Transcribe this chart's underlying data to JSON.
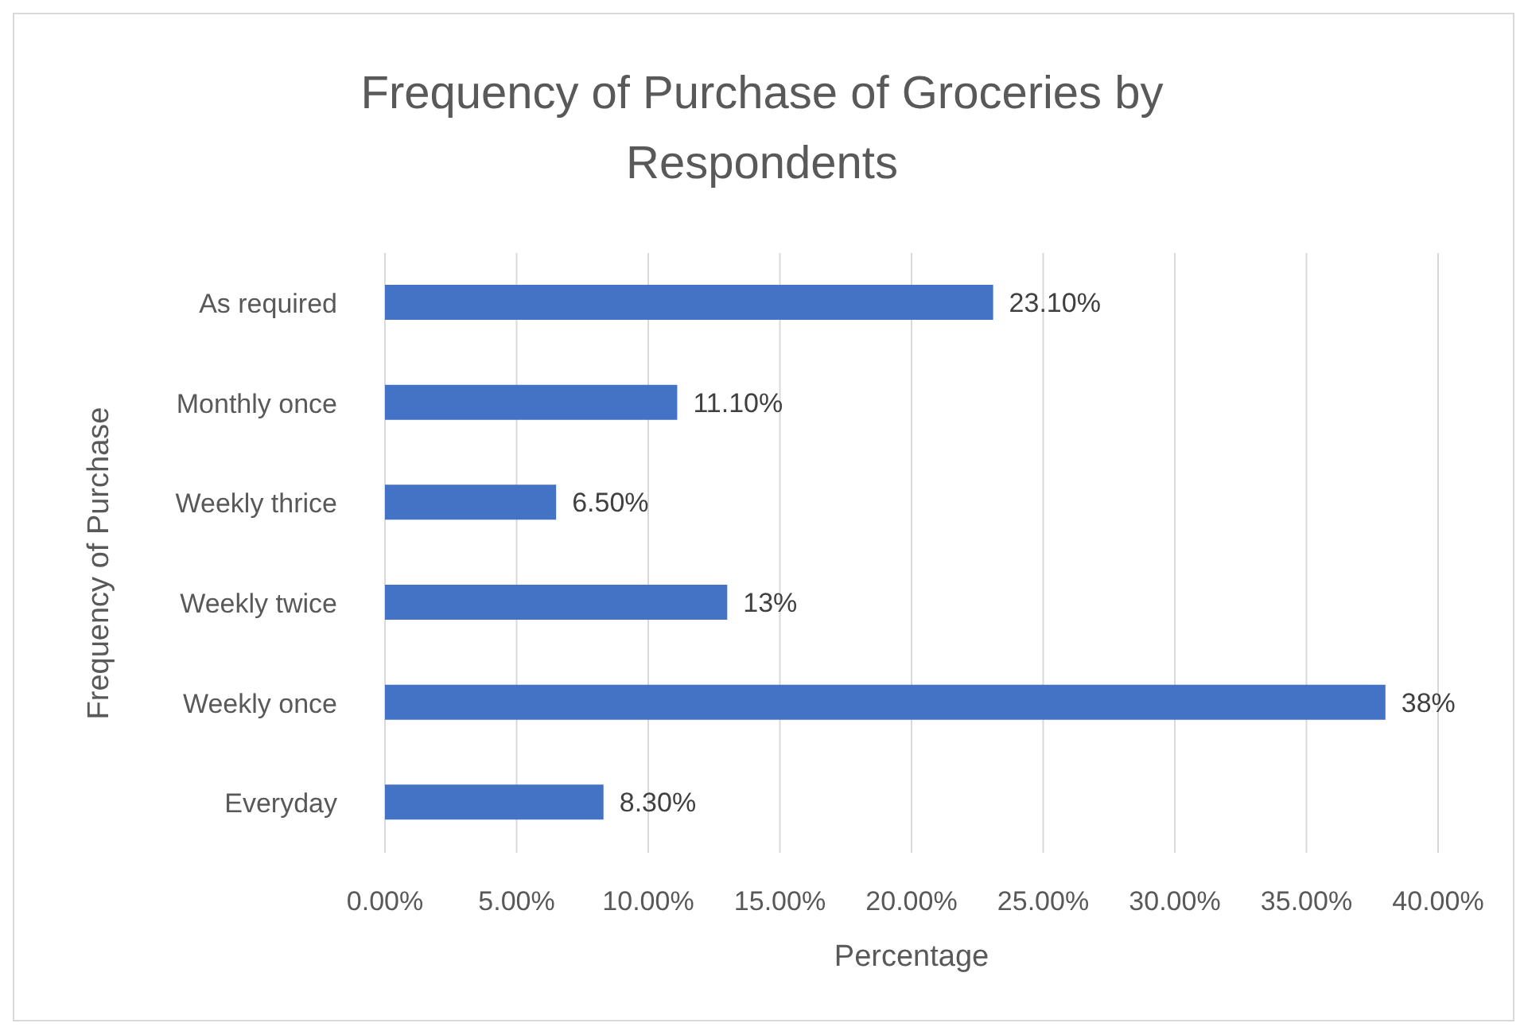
{
  "chart_data": {
    "type": "bar",
    "orientation": "horizontal",
    "title": "Frequency of Purchase of Groceries by Respondents",
    "xlabel": "Percentage",
    "ylabel": "Frequency of Purchase",
    "categories": [
      "As required",
      "Monthly once",
      "Weekly thrice",
      "Weekly twice",
      "Weekly once",
      "Everyday"
    ],
    "values": [
      23.1,
      11.1,
      6.5,
      13,
      38,
      8.3
    ],
    "value_labels": [
      "23.10%",
      "11.10%",
      "6.50%",
      "13%",
      "38%",
      "8.30%"
    ],
    "color": "#4472c4",
    "xlim": [
      0,
      40
    ],
    "xticks": [
      {
        "value": 0,
        "label": "0.00%"
      },
      {
        "value": 5,
        "label": "5.00%"
      },
      {
        "value": 10,
        "label": "10.00%"
      },
      {
        "value": 15,
        "label": "15.00%"
      },
      {
        "value": 20,
        "label": "20.00%"
      },
      {
        "value": 25,
        "label": "25.00%"
      },
      {
        "value": 30,
        "label": "30.00%"
      },
      {
        "value": 35,
        "label": "35.00%"
      },
      {
        "value": 40,
        "label": "40.00%"
      }
    ],
    "grid": "x",
    "legend": false
  }
}
